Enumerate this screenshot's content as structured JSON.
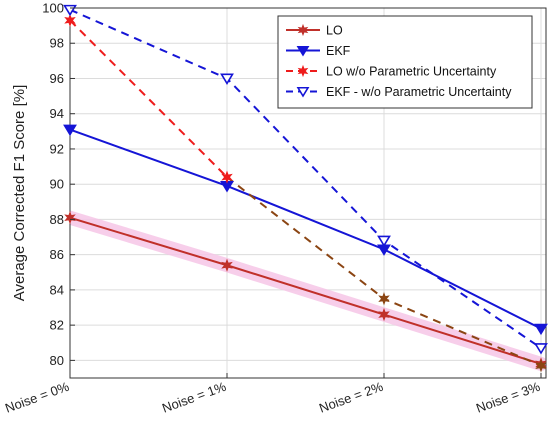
{
  "chart_data": {
    "type": "line",
    "title": "",
    "xlabel": "",
    "ylabel": "Average Corrected F1 Score [%]",
    "categories": [
      "Noise = 0%",
      "Noise = 1%",
      "Noise = 2%",
      "Noise = 3%"
    ],
    "ylim": [
      79,
      100
    ],
    "yticks": [
      80,
      82,
      84,
      86,
      88,
      90,
      92,
      94,
      96,
      98,
      100
    ],
    "grid": true,
    "legend_position": "top-right",
    "series": [
      {
        "name": "LO",
        "values": [
          88.1,
          85.4,
          82.6,
          79.8
        ],
        "color": "#c0302a",
        "dash": false,
        "marker": "star"
      },
      {
        "name": "EKF",
        "values": [
          93.1,
          89.9,
          86.3,
          81.8
        ],
        "color": "#1515d6",
        "dash": false,
        "marker": "triangle-down"
      },
      {
        "name": "LO w/o Parametric Uncertainty",
        "values": [
          99.3,
          90.4,
          83.5,
          79.7
        ],
        "color": "#ee1c1c",
        "color_lower": "#8b4513",
        "dash": true,
        "marker": "star"
      },
      {
        "name": "EKF - w/o Parametric Uncertainty",
        "values": [
          99.9,
          96.0,
          86.8,
          80.7
        ],
        "color": "#1515d6",
        "dash": true,
        "marker": "triangle-down"
      }
    ]
  }
}
